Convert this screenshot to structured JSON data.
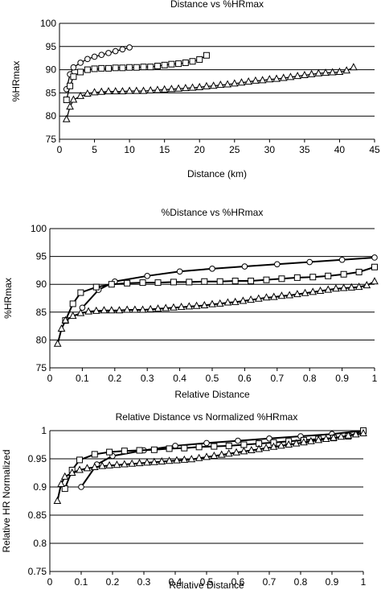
{
  "chart_data": [
    {
      "type": "line",
      "title": "Distance vs %HRmax",
      "xlabel": "Distance (km)",
      "ylabel": "%HRmax",
      "xlim": [
        0,
        45
      ],
      "ylim": [
        75,
        100
      ],
      "xticks": [
        0,
        5,
        10,
        15,
        20,
        25,
        30,
        35,
        40,
        45
      ],
      "yticks": [
        75,
        80,
        85,
        90,
        95,
        100
      ],
      "grid": "horizontal",
      "legend": "none",
      "series": [
        {
          "marker": "diamond",
          "x": [
            1,
            1.5,
            2,
            3,
            4,
            5,
            6,
            7,
            8,
            9,
            10
          ],
          "y": [
            85.8,
            89,
            90.5,
            91.5,
            92.3,
            92.8,
            93.2,
            93.6,
            94,
            94.4,
            94.8
          ]
        },
        {
          "marker": "square",
          "x": [
            1,
            1.5,
            2,
            3,
            4,
            5,
            6,
            7,
            8,
            9,
            10,
            11,
            12,
            13,
            14,
            15,
            16,
            17,
            18,
            19,
            20,
            21
          ],
          "y": [
            83.5,
            86.5,
            88.5,
            89.5,
            90,
            90.2,
            90.3,
            90.3,
            90.4,
            90.4,
            90.5,
            90.5,
            90.6,
            90.6,
            90.8,
            91,
            91.2,
            91.3,
            91.5,
            91.8,
            92.2,
            93.1
          ]
        },
        {
          "marker": "triangle",
          "x": [
            1,
            1.5,
            2,
            3,
            4,
            5,
            6,
            7,
            8,
            9,
            10,
            11,
            12,
            13,
            14,
            15,
            16,
            17,
            18,
            19,
            20,
            21,
            22,
            23,
            24,
            25,
            26,
            27,
            28,
            29,
            30,
            31,
            32,
            33,
            34,
            35,
            36,
            37,
            38,
            39,
            40,
            41,
            42
          ],
          "y": [
            79.3,
            82,
            83.5,
            84.3,
            84.8,
            85.1,
            85.2,
            85.3,
            85.3,
            85.3,
            85.4,
            85.4,
            85.4,
            85.5,
            85.6,
            85.7,
            85.8,
            85.9,
            86,
            86.1,
            86.2,
            86.4,
            86.5,
            86.7,
            86.8,
            87,
            87.2,
            87.4,
            87.6,
            87.7,
            87.9,
            88,
            88.2,
            88.4,
            88.6,
            88.8,
            89,
            89.2,
            89.3,
            89.4,
            89.5,
            89.8,
            90.5
          ]
        }
      ]
    },
    {
      "type": "line",
      "title": "%Distance vs %HRmax",
      "xlabel": "Relative Distance",
      "ylabel": "%HRmax",
      "xlim": [
        0,
        1
      ],
      "ylim": [
        75,
        100
      ],
      "xticks": [
        "0",
        "0.1",
        "0.2",
        "0.3",
        "0.4",
        "0.5",
        "0.6",
        "0.7",
        "0.8",
        "0.9",
        "1"
      ],
      "yticks": [
        75,
        80,
        85,
        90,
        95,
        100
      ],
      "grid": "horizontal",
      "legend": "none",
      "series": [
        {
          "marker": "diamond",
          "x": [
            0.1,
            0.15,
            0.2,
            0.3,
            0.4,
            0.5,
            0.6,
            0.7,
            0.8,
            0.9,
            1.0
          ],
          "y": [
            85.8,
            89,
            90.5,
            91.5,
            92.3,
            92.8,
            93.2,
            93.6,
            94,
            94.4,
            94.8
          ]
        },
        {
          "marker": "square",
          "x": [
            0.048,
            0.071,
            0.095,
            0.143,
            0.19,
            0.238,
            0.286,
            0.333,
            0.381,
            0.429,
            0.476,
            0.524,
            0.571,
            0.619,
            0.667,
            0.714,
            0.762,
            0.81,
            0.857,
            0.905,
            0.952,
            1.0
          ],
          "y": [
            83.5,
            86.5,
            88.5,
            89.5,
            90,
            90.2,
            90.3,
            90.3,
            90.4,
            90.4,
            90.5,
            90.5,
            90.6,
            90.6,
            90.8,
            91,
            91.2,
            91.3,
            91.5,
            91.8,
            92.2,
            93.1
          ]
        },
        {
          "marker": "triangle",
          "x": [
            0.024,
            0.036,
            0.048,
            0.071,
            0.095,
            0.119,
            0.143,
            0.167,
            0.19,
            0.214,
            0.238,
            0.262,
            0.286,
            0.31,
            0.333,
            0.357,
            0.381,
            0.405,
            0.429,
            0.452,
            0.476,
            0.5,
            0.524,
            0.548,
            0.571,
            0.595,
            0.619,
            0.643,
            0.667,
            0.69,
            0.714,
            0.738,
            0.762,
            0.786,
            0.81,
            0.833,
            0.857,
            0.881,
            0.905,
            0.929,
            0.952,
            0.976,
            1.0
          ],
          "y": [
            79.3,
            82,
            83.5,
            84.3,
            84.8,
            85.1,
            85.2,
            85.3,
            85.3,
            85.3,
            85.4,
            85.4,
            85.4,
            85.5,
            85.6,
            85.7,
            85.8,
            85.9,
            86,
            86.1,
            86.2,
            86.4,
            86.5,
            86.7,
            86.8,
            87,
            87.2,
            87.4,
            87.6,
            87.7,
            87.9,
            88,
            88.2,
            88.4,
            88.6,
            88.8,
            89,
            89.2,
            89.3,
            89.4,
            89.5,
            89.8,
            90.5
          ]
        }
      ]
    },
    {
      "type": "line",
      "title": "Relative Distance vs Normalized %HRmax",
      "xlabel": "Relative Distance",
      "ylabel": "Relative HR Normalized",
      "xlim": [
        0,
        1
      ],
      "ylim": [
        0.75,
        1
      ],
      "xticks": [
        "0",
        "0.1",
        "0.2",
        "0.3",
        "0.4",
        "0.5",
        "0.6",
        "0.7",
        "0.8",
        "0.9",
        "1"
      ],
      "yticks": [
        "0.75",
        "0.8",
        "0.85",
        "0.9",
        "0.95",
        "1"
      ],
      "grid": "horizontal",
      "legend": "none",
      "series": [
        {
          "marker": "diamond",
          "x": [
            0.1,
            0.15,
            0.2,
            0.3,
            0.4,
            0.5,
            0.6,
            0.7,
            0.8,
            0.9,
            1.0
          ],
          "y": [
            0.9,
            0.94,
            0.955,
            0.965,
            0.973,
            0.978,
            0.982,
            0.986,
            0.99,
            0.994,
            1.0
          ]
        },
        {
          "marker": "square",
          "x": [
            0.048,
            0.071,
            0.095,
            0.143,
            0.19,
            0.238,
            0.286,
            0.333,
            0.381,
            0.429,
            0.476,
            0.524,
            0.571,
            0.619,
            0.667,
            0.714,
            0.762,
            0.81,
            0.857,
            0.905,
            0.952,
            1.0
          ],
          "y": [
            0.897,
            0.93,
            0.948,
            0.958,
            0.962,
            0.964,
            0.965,
            0.966,
            0.968,
            0.969,
            0.971,
            0.972,
            0.973,
            0.975,
            0.977,
            0.979,
            0.981,
            0.983,
            0.985,
            0.987,
            0.99,
            1.0
          ]
        },
        {
          "marker": "triangle",
          "x": [
            0.024,
            0.036,
            0.048,
            0.071,
            0.095,
            0.119,
            0.143,
            0.167,
            0.19,
            0.214,
            0.238,
            0.262,
            0.286,
            0.31,
            0.333,
            0.357,
            0.381,
            0.405,
            0.429,
            0.452,
            0.476,
            0.5,
            0.524,
            0.548,
            0.571,
            0.595,
            0.619,
            0.643,
            0.667,
            0.69,
            0.714,
            0.738,
            0.762,
            0.786,
            0.81,
            0.833,
            0.857,
            0.881,
            0.905,
            0.929,
            0.952,
            0.976,
            1.0
          ],
          "y": [
            0.875,
            0.905,
            0.918,
            0.925,
            0.93,
            0.933,
            0.935,
            0.937,
            0.938,
            0.939,
            0.94,
            0.941,
            0.942,
            0.943,
            0.944,
            0.945,
            0.946,
            0.947,
            0.948,
            0.949,
            0.951,
            0.953,
            0.955,
            0.957,
            0.959,
            0.961,
            0.963,
            0.965,
            0.967,
            0.969,
            0.971,
            0.973,
            0.975,
            0.977,
            0.979,
            0.981,
            0.983,
            0.985,
            0.987,
            0.989,
            0.991,
            0.993,
            0.995
          ]
        }
      ]
    }
  ]
}
